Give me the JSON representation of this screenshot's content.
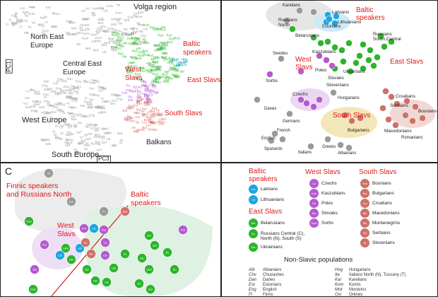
{
  "panel_a": {
    "axis_pc1": "PC1",
    "axis_pc3": "PC3",
    "volga": "Volga region",
    "north_east": "North East\nEurope",
    "central_east": "Central East\nEurope",
    "west_europe": "West Europe",
    "south_europe": "South Europe",
    "balkans": "Balkans",
    "baltic": "Baltic\nspeakers",
    "west_slavs": "West\nSlavs",
    "east_slavs": "East Slavs",
    "south_slavs": "South Slavs"
  },
  "panel_b": {
    "karelians": "Karelians",
    "russians_north": "Russians\nNorth",
    "estonians": "Estonians",
    "latvians": "Latvians",
    "lithuanians": "Lithuanians",
    "baltic": "Baltic\nspeakers",
    "belarusians": "Belarusians",
    "russians_sc": "Russians\nSouth,Central",
    "swedes": "Swedes",
    "kaszubians": "Kaszubians",
    "west_slavs": "West\nSlavs",
    "poles": "Poles",
    "ukrainians": "Ukrainians",
    "east_slavs": "East Slavs",
    "slovaks": "Slovaks",
    "sorbs": "Sorbs",
    "slovenians": "Slovenians",
    "hungarians": "Hungarians",
    "czechs": "Czechs",
    "danes": "Danes",
    "germans": "Germans",
    "croatians": "Croatians",
    "south_slavs": "South Slavs",
    "serbians": "Serbians",
    "bosnians": "Bosnians",
    "bulgarians": "Bulgarians",
    "macedonians": "Macedonians",
    "romanians": "Romanians",
    "french": "French",
    "english": "English",
    "spanards": "Spanards",
    "italians": "Italians",
    "greeks": "Greeks",
    "albanians": "Albanians"
  },
  "panel_c": {
    "letter": "C",
    "finnic": "Finnic speakers\nand Russians North",
    "baltic": "Baltic\nspeakers",
    "west_slavs": "West\nSlavs"
  },
  "legend": {
    "baltic_title": "Baltic\nspeakers",
    "baltic_items": [
      {
        "code": "Lat",
        "label": "Latvians",
        "color": "#1ba6e0"
      },
      {
        "code": "Lit",
        "label": "Lithuanians",
        "color": "#1ba6e0"
      }
    ],
    "east_title": "East Slavs",
    "east_items": [
      {
        "code": "Bel",
        "label": "Belarusians",
        "color": "#2bb52b"
      },
      {
        "code": "Ru",
        "label": "Russians Central (C),\nNorth (N), South (S)",
        "color": "#2bb52b"
      },
      {
        "code": "Ukr",
        "label": "Ukrainians",
        "color": "#2bb52b"
      }
    ],
    "west_title": "West Slavs",
    "west_items": [
      {
        "code": "Cz",
        "label": "Czechs",
        "color": "#b55ad0"
      },
      {
        "code": "Kas",
        "label": "Kaszubians",
        "color": "#b55ad0"
      },
      {
        "code": "Po",
        "label": "Poles",
        "color": "#b55ad0"
      },
      {
        "code": "Slo",
        "label": "Slovaks",
        "color": "#b55ad0"
      },
      {
        "code": "Sorb",
        "label": "Sorbs",
        "color": "#b55ad0"
      }
    ],
    "south_title": "South Slavs",
    "south_items": [
      {
        "code": "Bos",
        "label": "Bosnians",
        "color": "#d0706a"
      },
      {
        "code": "Bul",
        "label": "Bulgarians",
        "color": "#d0706a"
      },
      {
        "code": "Cro",
        "label": "Croatians",
        "color": "#d0706a"
      },
      {
        "code": "Mc",
        "label": "Macedonians",
        "color": "#d0706a"
      },
      {
        "code": "Mo",
        "label": "Montenegrins",
        "color": "#d0706a"
      },
      {
        "code": "Se",
        "label": "Serbians",
        "color": "#d0706a"
      },
      {
        "code": "Sl",
        "label": "Slovenians",
        "color": "#d0706a"
      }
    ],
    "nonslavic_title": "Non-Slavic populations",
    "nonslavic_left": [
      [
        "Alb",
        "Albanians"
      ],
      [
        "Chv",
        "Chuvashes"
      ],
      [
        "Dan",
        "Danes"
      ],
      [
        "Est",
        "Estonians"
      ],
      [
        "Eng",
        "English"
      ],
      [
        "Fi",
        "Finns"
      ]
    ],
    "nonslavic_right": [
      [
        "Hng",
        "Hungarians"
      ],
      [
        "Ita",
        "Italians North (N), Tuscany (T)"
      ],
      [
        "Kar",
        "Karelians"
      ],
      [
        "Kom",
        "Komis"
      ],
      [
        "Mrd",
        "Mordvins"
      ],
      [
        "Orc",
        "Orkney"
      ]
    ]
  },
  "colors": {
    "baltic": "#1ba6e0",
    "east_slavs": "#2bb52b",
    "west_slavs": "#b55ad0",
    "south_slavs": "#d0706a",
    "non_slavic": "#9a9a9a",
    "label_red": "#e01818"
  }
}
